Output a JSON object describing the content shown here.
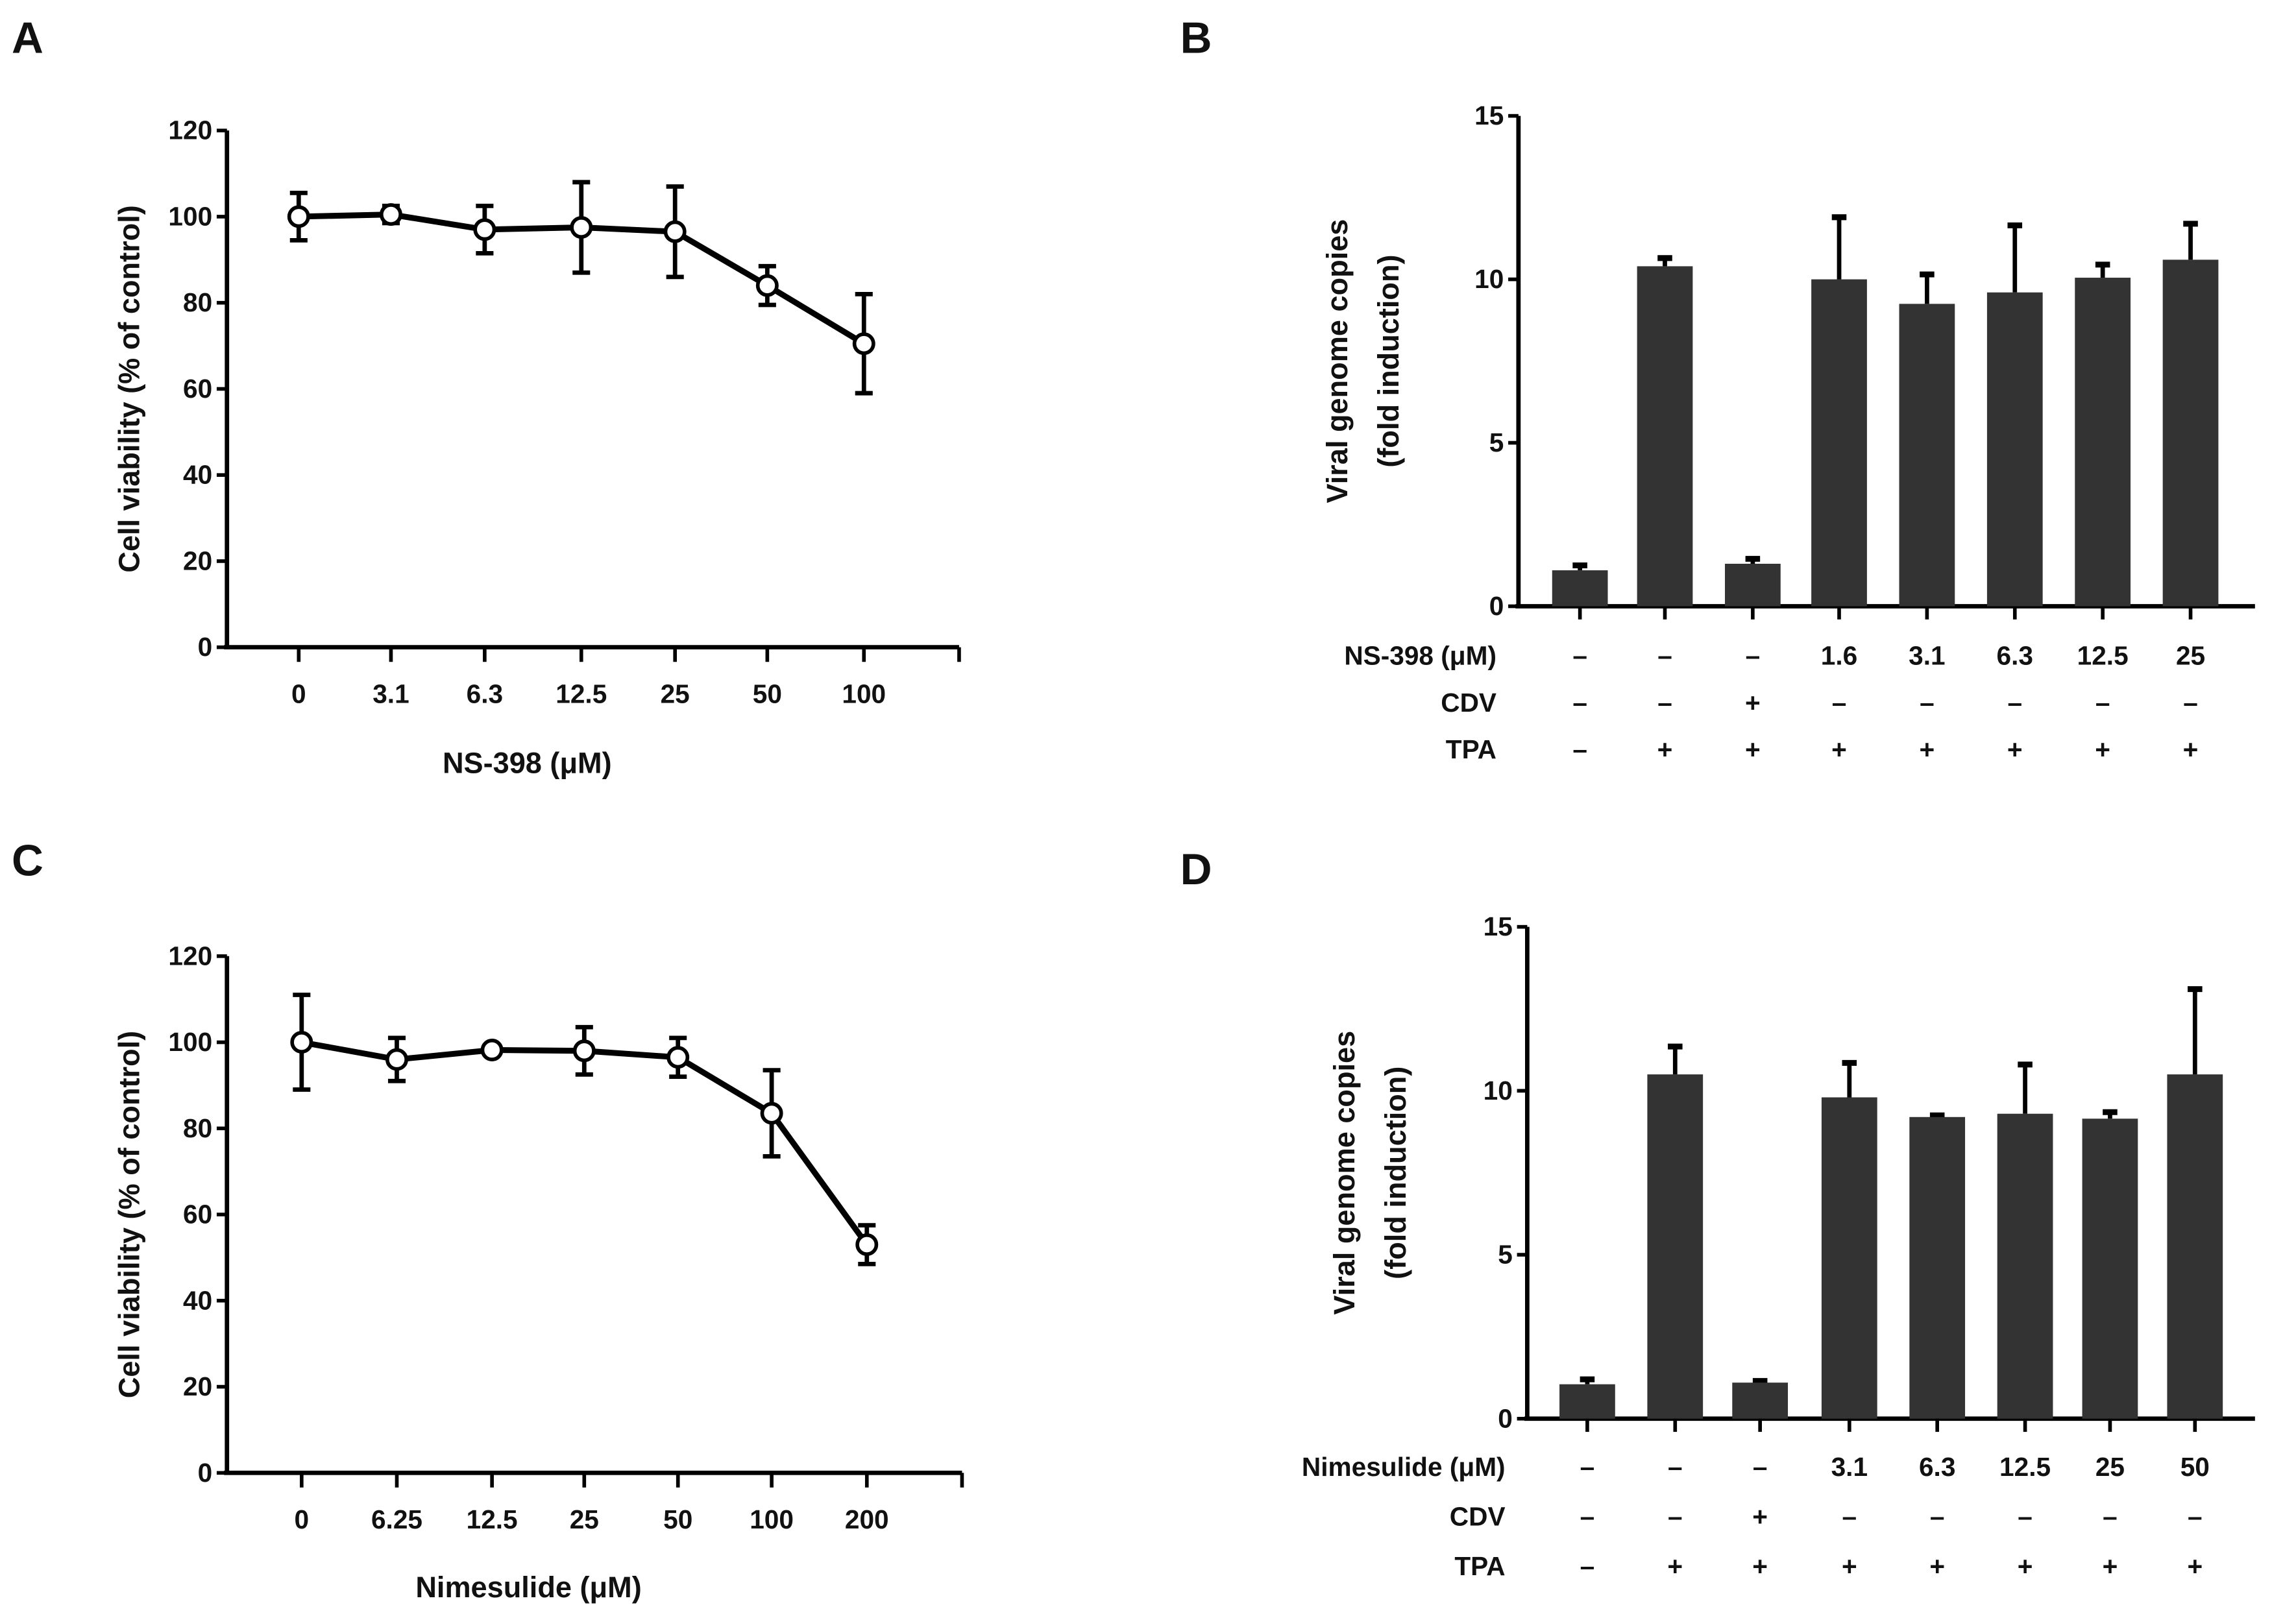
{
  "chart_data": [
    {
      "panel": "A",
      "type": "line",
      "xlabel": "NS-398 (μM)",
      "ylabel": "Cell viability (% of control)",
      "ylim": [
        0,
        120
      ],
      "yticks": [
        "0",
        "20",
        "40",
        "60",
        "80",
        "100",
        "120"
      ],
      "categories": [
        "0",
        "3.1",
        "6.3",
        "12.5",
        "25",
        "50",
        "100"
      ],
      "values": [
        100,
        100.5,
        97,
        97.5,
        96.5,
        84,
        70.5
      ],
      "errors": [
        5.5,
        2,
        5.5,
        10.5,
        10.5,
        4.5,
        11.5
      ]
    },
    {
      "panel": "B",
      "type": "bar",
      "ylabel": [
        "Viral genome copies",
        "(fold induction)"
      ],
      "ylim": [
        0,
        15
      ],
      "yticks": [
        "0",
        "5",
        "10",
        "15"
      ],
      "values": [
        1.1,
        10.4,
        1.3,
        10.0,
        9.25,
        9.6,
        10.05,
        10.6
      ],
      "errors": [
        0.15,
        0.25,
        0.15,
        1.9,
        0.9,
        2.05,
        0.4,
        1.1
      ],
      "rows": [
        {
          "label": "NS-398 (μM)",
          "cells": [
            "–",
            "–",
            "–",
            "1.6",
            "3.1",
            "6.3",
            "12.5",
            "25"
          ]
        },
        {
          "label": "CDV",
          "cells": [
            "–",
            "–",
            "+",
            "–",
            "–",
            "–",
            "–",
            "–"
          ]
        },
        {
          "label": "TPA",
          "cells": [
            "–",
            "+",
            "+",
            "+",
            "+",
            "+",
            "+",
            "+"
          ]
        }
      ]
    },
    {
      "panel": "C",
      "type": "line",
      "xlabel": "Nimesulide (μM)",
      "ylabel": "Cell viability (% of control)",
      "ylim": [
        0,
        120
      ],
      "yticks": [
        "0",
        "20",
        "40",
        "60",
        "80",
        "100",
        "120"
      ],
      "categories": [
        "0",
        "6.25",
        "12.5",
        "25",
        "50",
        "100",
        "200"
      ],
      "values": [
        100,
        96,
        98.2,
        98,
        96.5,
        83.5,
        53
      ],
      "errors": [
        11,
        5,
        1,
        5.5,
        4.5,
        10,
        4.5
      ]
    },
    {
      "panel": "D",
      "type": "bar",
      "ylabel": [
        "Viral genome copies",
        "(fold induction)"
      ],
      "ylim": [
        0,
        15
      ],
      "yticks": [
        "0",
        "5",
        "10",
        "15"
      ],
      "values": [
        1.05,
        10.5,
        1.1,
        9.8,
        9.2,
        9.3,
        9.15,
        10.5
      ],
      "errors": [
        0.15,
        0.85,
        0.05,
        1.05,
        0.05,
        1.5,
        0.2,
        2.6
      ],
      "rows": [
        {
          "label": "Nimesulide (μM)",
          "cells": [
            "–",
            "–",
            "–",
            "3.1",
            "6.3",
            "12.5",
            "25",
            "50"
          ]
        },
        {
          "label": "CDV",
          "cells": [
            "–",
            "–",
            "+",
            "–",
            "–",
            "–",
            "–",
            "–"
          ]
        },
        {
          "label": "TPA",
          "cells": [
            "–",
            "+",
            "+",
            "+",
            "+",
            "+",
            "+",
            "+"
          ]
        }
      ]
    }
  ],
  "colors": {
    "bar": "#333333",
    "line": "#000000"
  }
}
